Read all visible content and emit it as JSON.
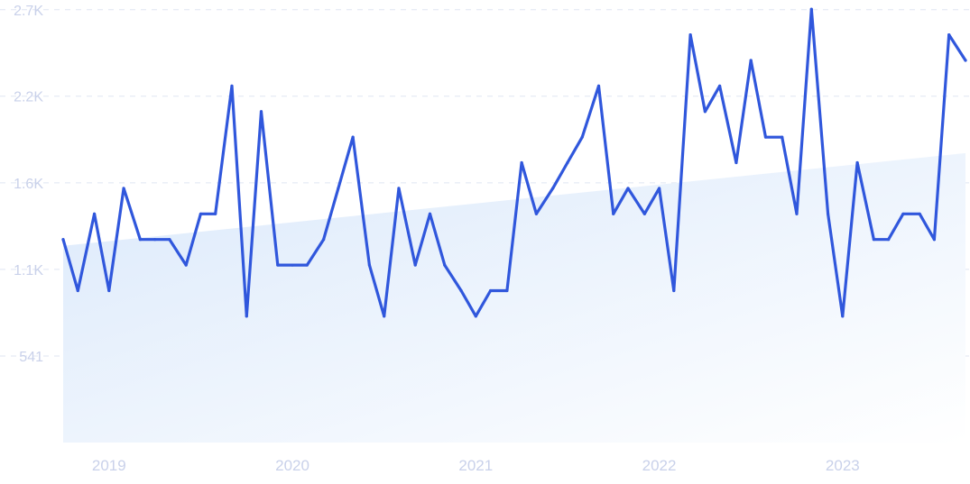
{
  "chart_data": {
    "type": "line",
    "title": "",
    "xlabel": "",
    "ylabel": "",
    "grid": true,
    "legend": "none",
    "ylim": [
      0,
      2700
    ],
    "y_ticks": [
      {
        "value": 541,
        "label": "541"
      },
      {
        "value": 1083,
        "label": "1.1K"
      },
      {
        "value": 1624,
        "label": "1.6K"
      },
      {
        "value": 2166,
        "label": "2.2K"
      },
      {
        "value": 2707,
        "label": "2.7K"
      }
    ],
    "x_ticks": [
      {
        "value": 2019.0,
        "label": "2019"
      },
      {
        "value": 2020.0,
        "label": "2020"
      },
      {
        "value": 2021.0,
        "label": "2021"
      },
      {
        "value": 2022.0,
        "label": "2022"
      },
      {
        "value": 2023.0,
        "label": "2023"
      }
    ],
    "xlim": [
      2018.75,
      2023.67
    ],
    "colors": {
      "line": "#3057dc",
      "trend_fill_top": "#dbe9fb",
      "trend_fill_bottom": "#ffffff"
    },
    "trend": {
      "start": [
        2018.75,
        1230
      ],
      "end": [
        2023.67,
        1810
      ]
    },
    "series": [
      {
        "x": [
          2018.75,
          2018.83,
          2018.92,
          2019.0,
          2019.08,
          2019.17,
          2019.25,
          2019.33,
          2019.42,
          2019.5,
          2019.58,
          2019.67,
          2019.75,
          2019.83,
          2019.92,
          2020.0,
          2020.08,
          2020.17,
          2020.25,
          2020.33,
          2020.42,
          2020.5,
          2020.58,
          2020.67,
          2020.75,
          2020.83,
          2020.92,
          2021.0,
          2021.08,
          2021.17,
          2021.25,
          2021.33,
          2021.42,
          2021.5,
          2021.58,
          2021.67,
          2021.75,
          2021.83,
          2021.92,
          2022.0,
          2022.08,
          2022.17,
          2022.25,
          2022.33,
          2022.42,
          2022.5,
          2022.58,
          2022.67,
          2022.75,
          2022.83,
          2022.92,
          2023.0,
          2023.08,
          2023.17,
          2023.25,
          2023.33,
          2023.42,
          2023.5,
          2023.58,
          2023.67
        ],
        "values": [
          1270,
          950,
          1430,
          950,
          1590,
          1270,
          1270,
          1270,
          1110,
          1430,
          1430,
          2230,
          790,
          2070,
          1110,
          1110,
          1110,
          1270,
          1590,
          1910,
          1110,
          790,
          1590,
          1110,
          1430,
          1110,
          950,
          790,
          950,
          950,
          1750,
          1430,
          1590,
          1750,
          1910,
          2230,
          1430,
          1590,
          1430,
          1590,
          950,
          2550,
          2070,
          2230,
          1750,
          2390,
          1910,
          1910,
          1430,
          2710,
          1430,
          790,
          1750,
          1270,
          1270,
          1430,
          1430,
          1270,
          2550,
          2390
        ]
      }
    ]
  }
}
